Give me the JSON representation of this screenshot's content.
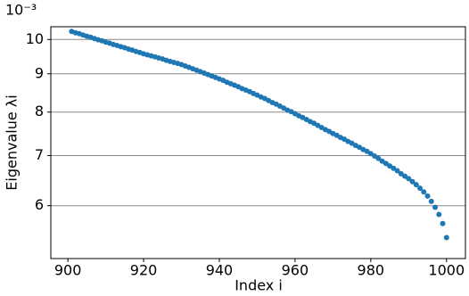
{
  "chart_data": {
    "type": "scatter",
    "x_label": "Index i",
    "y_label": "Eigenvalue λi",
    "y_offset_label": "10⁻³",
    "log_y": true,
    "grid": "y",
    "xlim": [
      895.5,
      1005
    ],
    "ylim": [
      5.1,
      10.4
    ],
    "xticks": [
      900,
      920,
      940,
      960,
      980,
      1000
    ],
    "yticks": [
      6,
      7,
      8,
      9,
      10
    ],
    "series": [
      {
        "color": "#1f77b4",
        "x": [
          901,
          902,
          903,
          904,
          905,
          906,
          907,
          908,
          909,
          910,
          911,
          912,
          913,
          914,
          915,
          916,
          917,
          918,
          919,
          920,
          921,
          922,
          923,
          924,
          925,
          926,
          927,
          928,
          929,
          930,
          931,
          932,
          933,
          934,
          935,
          936,
          937,
          938,
          939,
          940,
          941,
          942,
          943,
          944,
          945,
          946,
          947,
          948,
          949,
          950,
          951,
          952,
          953,
          954,
          955,
          956,
          957,
          958,
          959,
          960,
          961,
          962,
          963,
          964,
          965,
          966,
          967,
          968,
          969,
          970,
          971,
          972,
          973,
          974,
          975,
          976,
          977,
          978,
          979,
          980,
          981,
          982,
          983,
          984,
          985,
          986,
          987,
          988,
          989,
          990,
          991,
          992,
          993,
          994,
          995,
          996,
          997,
          998,
          999,
          1000
        ],
        "values": [
          10.25,
          10.21,
          10.18,
          10.14,
          10.1,
          10.07,
          10.03,
          9.99,
          9.96,
          9.92,
          9.89,
          9.85,
          9.82,
          9.78,
          9.75,
          9.71,
          9.68,
          9.64,
          9.61,
          9.57,
          9.54,
          9.51,
          9.48,
          9.45,
          9.42,
          9.38,
          9.35,
          9.32,
          9.29,
          9.26,
          9.22,
          9.18,
          9.14,
          9.1,
          9.06,
          9.02,
          8.98,
          8.94,
          8.9,
          8.86,
          8.82,
          8.77,
          8.73,
          8.69,
          8.65,
          8.6,
          8.56,
          8.52,
          8.47,
          8.43,
          8.38,
          8.34,
          8.29,
          8.24,
          8.2,
          8.15,
          8.1,
          8.05,
          8.01,
          7.96,
          7.91,
          7.87,
          7.82,
          7.77,
          7.73,
          7.68,
          7.63,
          7.58,
          7.54,
          7.49,
          7.45,
          7.4,
          7.36,
          7.31,
          7.27,
          7.22,
          7.18,
          7.13,
          7.09,
          7.04,
          6.99,
          6.94,
          6.88,
          6.83,
          6.78,
          6.73,
          6.68,
          6.62,
          6.57,
          6.52,
          6.46,
          6.4,
          6.33,
          6.26,
          6.18,
          6.08,
          5.97,
          5.84,
          5.68,
          5.44
        ]
      }
    ]
  }
}
